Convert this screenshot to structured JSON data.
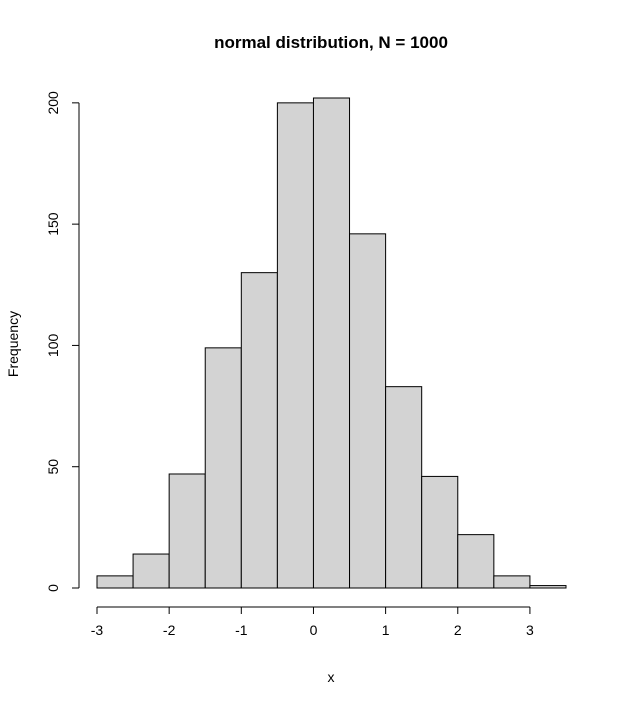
{
  "chart_data": {
    "type": "bar",
    "title": "normal distribution, N = 1000",
    "xlabel": "x",
    "ylabel": "Frequency",
    "bin_edges": [
      -3,
      -2.5,
      -2,
      -1.5,
      -1,
      -0.5,
      0,
      0.5,
      1,
      1.5,
      2,
      2.5,
      3,
      3.5
    ],
    "values": [
      5,
      14,
      47,
      99,
      130,
      200,
      202,
      146,
      83,
      46,
      22,
      5,
      1
    ],
    "xlim": [
      -3,
      3.5
    ],
    "ylim": [
      0,
      202
    ],
    "x_ticks": [
      -3,
      -2,
      -1,
      0,
      1,
      2,
      3
    ],
    "x_tick_labels": [
      "-3",
      "-2",
      "-1",
      "0",
      "1",
      "2",
      "3"
    ],
    "y_ticks": [
      0,
      50,
      100,
      150,
      200
    ],
    "y_tick_labels": [
      "0",
      "50",
      "100",
      "150",
      "200"
    ],
    "grid": false,
    "legend": "none",
    "bar_color": "#d3d3d3",
    "edge_color": "#000000"
  }
}
